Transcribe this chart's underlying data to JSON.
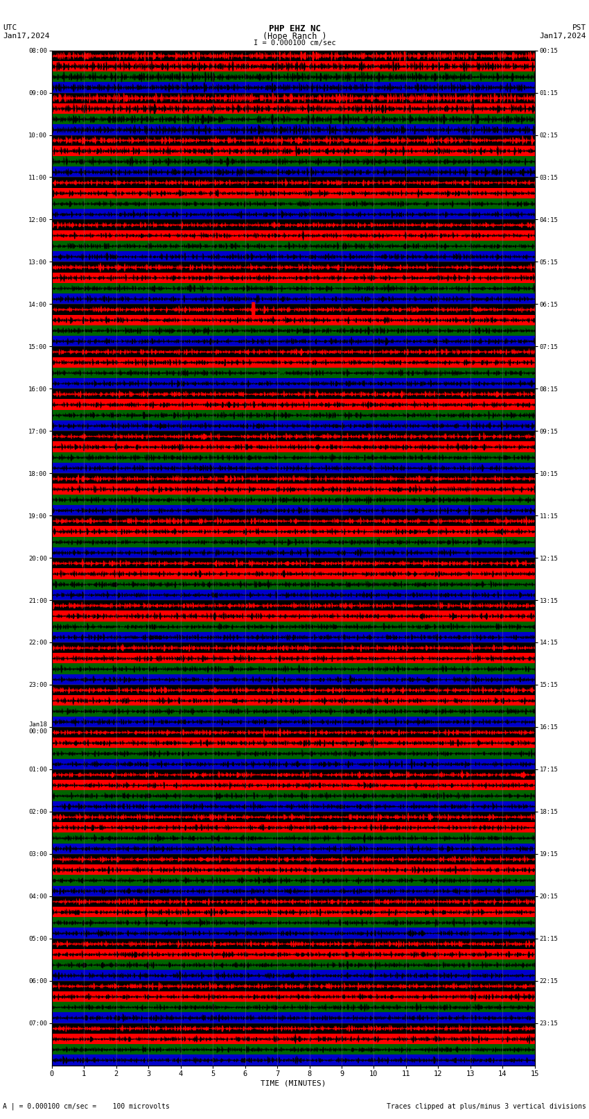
{
  "title_line1": "PHP EHZ NC",
  "title_line2": "(Hope Ranch )",
  "title_line3": "I = 0.000100 cm/sec",
  "left_top_label1": "UTC",
  "left_top_label2": "Jan17,2024",
  "right_top_label1": "PST",
  "right_top_label2": "Jan17,2024",
  "xlabel": "TIME (MINUTES)",
  "bottom_label": "A | = 0.000100 cm/sec =    100 microvolts",
  "bottom_right_label": "Traces clipped at plus/minus 3 vertical divisions",
  "left_times_utc": [
    "08:00",
    "09:00",
    "10:00",
    "11:00",
    "12:00",
    "13:00",
    "14:00",
    "15:00",
    "16:00",
    "17:00",
    "18:00",
    "19:00",
    "20:00",
    "21:00",
    "22:00",
    "23:00",
    "Jan18\n00:00",
    "01:00",
    "02:00",
    "03:00",
    "04:00",
    "05:00",
    "06:00",
    "07:00"
  ],
  "right_times_pst": [
    "00:15",
    "01:15",
    "02:15",
    "03:15",
    "04:15",
    "05:15",
    "06:15",
    "07:15",
    "08:15",
    "09:15",
    "10:15",
    "11:15",
    "12:15",
    "13:15",
    "14:15",
    "15:15",
    "16:15",
    "17:15",
    "18:15",
    "19:15",
    "20:15",
    "21:15",
    "22:15",
    "23:15"
  ],
  "num_rows": 24,
  "minutes_per_row": 15,
  "bg_color": "#ffffff",
  "plot_bg": "#000000",
  "band_colors": [
    "#000000",
    "#ff0000",
    "#006400",
    "#0000cc"
  ],
  "seed": 42
}
